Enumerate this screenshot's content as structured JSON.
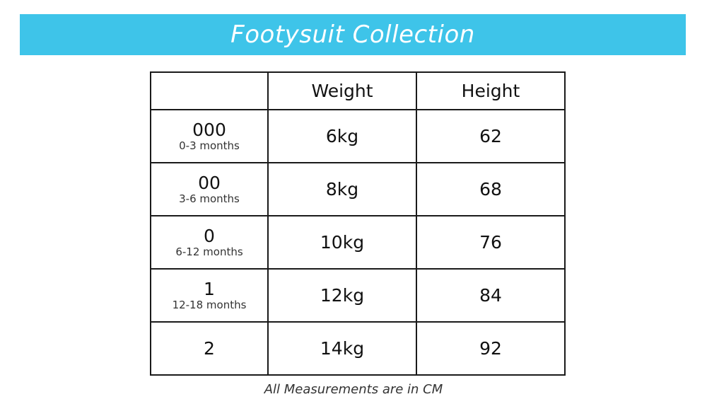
{
  "title": "Footysuit Collection",
  "colors": {
    "banner": "#3ec4e9",
    "border": "#1a1a1a"
  },
  "table": {
    "headers": [
      "",
      "Weight",
      "Height"
    ],
    "rows": [
      {
        "size": "000",
        "age": "0-3 months",
        "weight": "6kg",
        "height": "62"
      },
      {
        "size": "00",
        "age": "3-6 months",
        "weight": "8kg",
        "height": "68"
      },
      {
        "size": "0",
        "age": "6-12 months",
        "weight": "10kg",
        "height": "76"
      },
      {
        "size": "1",
        "age": "12-18 months",
        "weight": "12kg",
        "height": "84"
      },
      {
        "size": "2",
        "age": "",
        "weight": "14kg",
        "height": "92"
      }
    ]
  },
  "footnote": "All Measurements are in CM"
}
